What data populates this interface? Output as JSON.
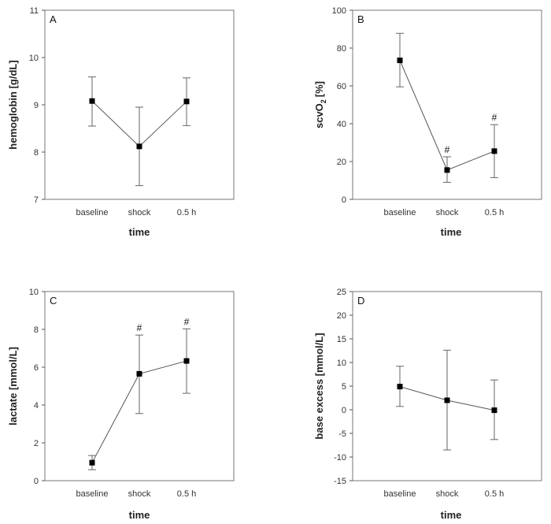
{
  "chart_data": [
    {
      "type": "line",
      "panel": "A",
      "ylabel": "hemoglobin [g/dL]",
      "xlabel": "time",
      "categories": [
        "baseline",
        "shock",
        "0.5 h"
      ],
      "values": [
        9.08,
        8.12,
        9.07
      ],
      "error_low": [
        8.55,
        7.29,
        8.56
      ],
      "error_high": [
        9.59,
        8.95,
        9.57
      ],
      "significance": [
        "",
        "",
        ""
      ],
      "ylim": [
        7,
        11
      ],
      "yticks": [
        7,
        8,
        9,
        10,
        11
      ]
    },
    {
      "type": "line",
      "panel": "B",
      "ylabel": "scvO",
      "ylabel_sub": "2",
      "ylabel_unit": "[%]",
      "xlabel": "time",
      "categories": [
        "baseline",
        "shock",
        "0.5 h"
      ],
      "values": [
        73.5,
        15.5,
        25.5
      ],
      "error_low": [
        59.5,
        9,
        11.5
      ],
      "error_high": [
        87.8,
        22.5,
        39.5
      ],
      "significance": [
        "",
        "#",
        "#"
      ],
      "ylim": [
        0,
        100
      ],
      "yticks": [
        0,
        20,
        40,
        60,
        80,
        100
      ]
    },
    {
      "type": "line",
      "panel": "C",
      "ylabel": "lactate [mmol/L]",
      "xlabel": "time",
      "categories": [
        "baseline",
        "shock",
        "0.5 h"
      ],
      "values": [
        0.95,
        5.65,
        6.33
      ],
      "error_low": [
        0.58,
        3.55,
        4.62
      ],
      "error_high": [
        1.33,
        7.7,
        8.03
      ],
      "significance": [
        "",
        "#",
        "#"
      ],
      "ylim": [
        0,
        10
      ],
      "yticks": [
        0,
        2,
        4,
        6,
        8,
        10
      ]
    },
    {
      "type": "line",
      "panel": "D",
      "ylabel": "base excess [mmol/L]",
      "xlabel": "time",
      "categories": [
        "baseline",
        "shock",
        "0.5 h"
      ],
      "values": [
        4.9,
        2.0,
        -0.1
      ],
      "error_low": [
        0.7,
        -8.5,
        -6.3
      ],
      "error_high": [
        9.2,
        12.6,
        6.3
      ],
      "significance": [
        "",
        "",
        ""
      ],
      "ylim": [
        -15,
        25
      ],
      "yticks": [
        -15,
        -10,
        -5,
        0,
        5,
        10,
        15,
        20,
        25
      ]
    }
  ]
}
